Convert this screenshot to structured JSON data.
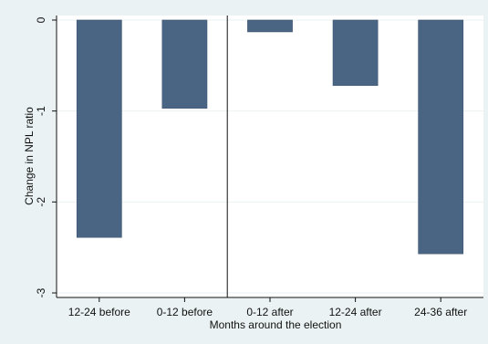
{
  "chart_data": {
    "type": "bar",
    "categories": [
      "12-24 before",
      "0-12 before",
      "0-12 after",
      "12-24 after",
      "24-36 after"
    ],
    "values": [
      -2.39,
      -0.97,
      -0.13,
      -0.72,
      -2.57
    ],
    "ylabel": "Change in NPL ratio",
    "xlabel": "Months around the election",
    "ylim": [
      -3.05,
      0.05
    ],
    "yticks": [
      0,
      -1,
      -2,
      -3
    ],
    "ytick_labels": [
      "0",
      "-1",
      "-2",
      "-3"
    ],
    "bar_color": "#4a6584",
    "plot_background": "#ffffff",
    "outer_background": "#eaf2f3",
    "gridline_color": "#eaf2f3",
    "grid": true,
    "legend": "none",
    "vertical_line_between": [
      "0-12 before",
      "0-12 after"
    ]
  }
}
